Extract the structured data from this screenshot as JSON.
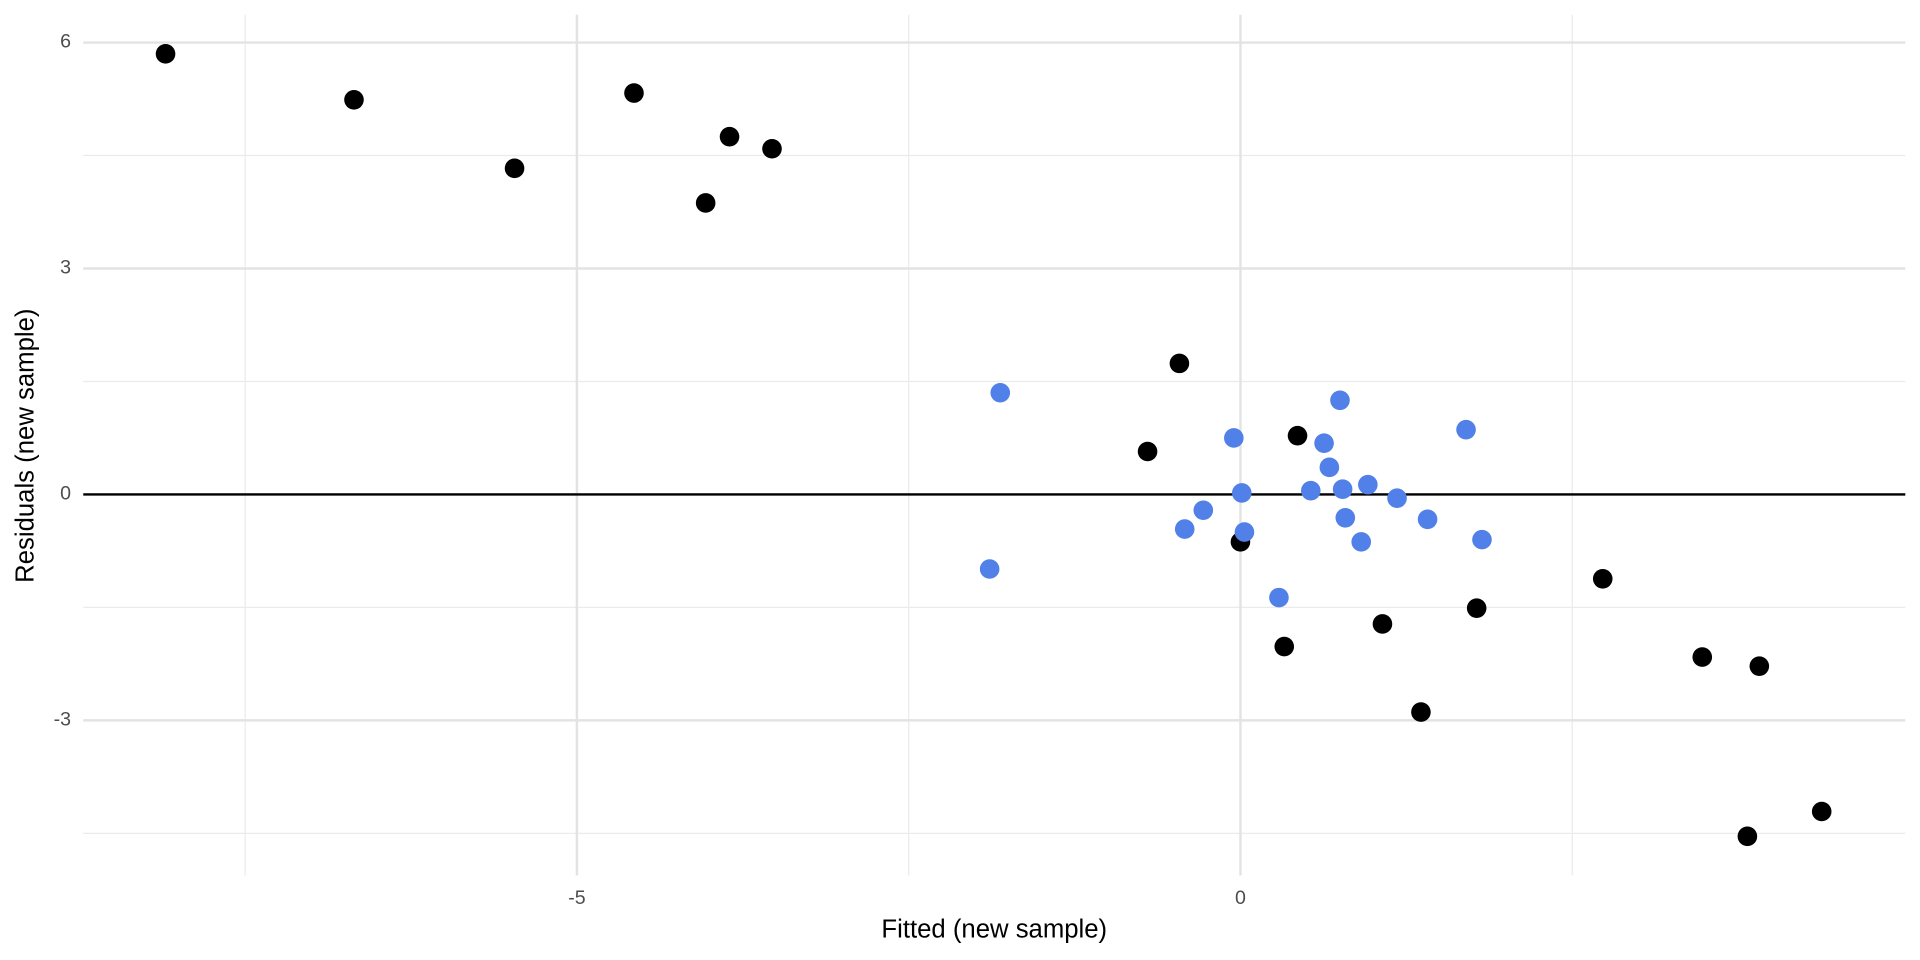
{
  "chart_data": {
    "type": "scatter",
    "x_label": "Fitted (new sample)",
    "y_label": "Residuals (new sample)",
    "xlim": [
      -8.72,
      5.01
    ],
    "ylim": [
      -5.06,
      6.37
    ],
    "xticks": [
      -5,
      0
    ],
    "yticks": [
      -3,
      0,
      3,
      6
    ],
    "xminor": [
      -7.5,
      -2.5,
      2.5
    ],
    "yminor": [
      -4.5,
      -1.5,
      1.5,
      4.5
    ],
    "grid": true,
    "hline": 0,
    "series": [
      {
        "color": "#000000",
        "x": [
          -8.1,
          -6.68,
          -5.47,
          -4.57,
          -3.85,
          -3.53,
          -4.03,
          -0.46,
          -0.7,
          0.43,
          0.0,
          0.33,
          1.07,
          1.36,
          1.78,
          2.73,
          3.48,
          3.91,
          3.82,
          4.38
        ],
        "y": [
          5.85,
          5.24,
          4.33,
          5.33,
          4.75,
          4.59,
          3.87,
          1.74,
          0.57,
          0.78,
          -0.63,
          -2.02,
          -1.72,
          -2.89,
          -1.51,
          -1.12,
          -2.16,
          -2.28,
          -4.54,
          -4.21
        ]
      },
      {
        "color": "#5080e8",
        "x": [
          -1.81,
          -1.89,
          -0.42,
          -0.28,
          -0.05,
          0.01,
          0.03,
          0.29,
          0.53,
          0.63,
          0.67,
          0.75,
          0.77,
          0.79,
          0.91,
          0.96,
          1.18,
          1.41,
          1.7,
          1.82
        ],
        "y": [
          1.35,
          -0.99,
          -0.46,
          -0.21,
          0.75,
          0.02,
          -0.5,
          -1.37,
          0.05,
          0.68,
          0.36,
          1.25,
          0.07,
          -0.31,
          -0.63,
          0.13,
          -0.05,
          -0.33,
          0.86,
          -0.6
        ]
      }
    ]
  }
}
